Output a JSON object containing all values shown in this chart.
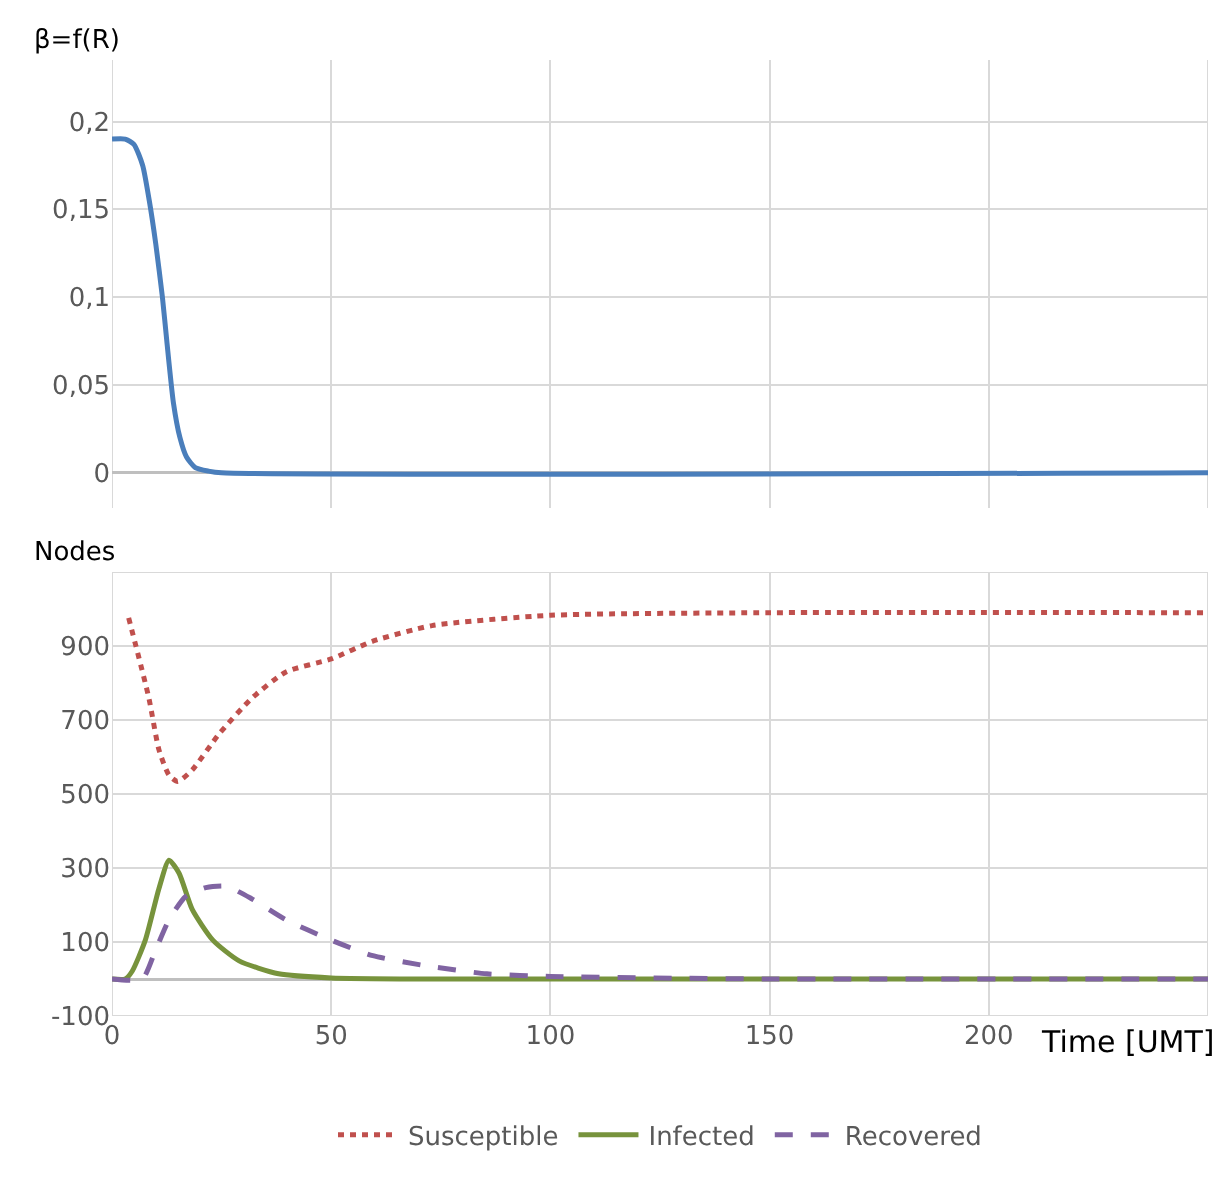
{
  "chart_data": [
    {
      "type": "line",
      "ylabel": "β=f(R)",
      "xlim": [
        0,
        250
      ],
      "xticks": [
        0,
        50,
        100,
        150,
        200,
        {
          "value": 250,
          "label": null
        }
      ],
      "ylim": [
        -0.02,
        0.235
      ],
      "yticks": [
        {
          "value": 0,
          "label": "0"
        },
        {
          "value": 0.05,
          "label": "0,05"
        },
        {
          "value": 0.1,
          "label": "0,1"
        },
        {
          "value": 0.15,
          "label": "0,15"
        },
        {
          "value": 0.2,
          "label": "0,2"
        }
      ],
      "grid": true,
      "tick_labels": "y",
      "line_style": "solid",
      "series": [
        {
          "color": "#4a7ebb",
          "x": [
            0,
            3,
            5,
            7,
            8.5,
            10,
            11.5,
            12.5,
            14,
            15.5,
            17,
            19,
            22,
            25,
            250
          ],
          "values": [
            0.19,
            0.19,
            0.187,
            0.175,
            0.155,
            0.13,
            0.1,
            0.075,
            0.04,
            0.02,
            0.009,
            0.003,
            0.001,
            0,
            0
          ]
        }
      ]
    },
    {
      "type": "line",
      "ylabel": "Nodes",
      "xlabel": "Time [UMT]",
      "xlim": [
        0,
        250
      ],
      "xticks": [
        0,
        50,
        100,
        150,
        200,
        {
          "value": 250,
          "label": null
        }
      ],
      "ylim": [
        -100,
        1100
      ],
      "yticks": [
        -100,
        100,
        300,
        500,
        700,
        900,
        {
          "value": 1100,
          "label": null
        }
      ],
      "grid": true,
      "legend": "bottom",
      "series": [
        {
          "name": "Susceptible",
          "color": "#c0504d",
          "line_style": "dotted",
          "x": [
            3.8,
            8.4,
            10.7,
            13,
            15,
            18.3,
            24.4,
            32,
            39.7,
            50,
            59.5,
            73,
            100,
            150,
            250
          ],
          "values": [
            976,
            760,
            620,
            551,
            534,
            565,
            662,
            760,
            830,
            865,
            913,
            955,
            983,
            990,
            990
          ]
        },
        {
          "name": "Infected",
          "color": "#77933c",
          "line_style": "solid",
          "x": [
            0,
            3,
            4.6,
            7.6,
            10.7,
            13,
            15.3,
            18.3,
            23,
            29,
            38,
            50,
            70,
            250
          ],
          "values": [
            0,
            0,
            21,
            105,
            244,
            321,
            286,
            188,
            105,
            49,
            14,
            3,
            0,
            0
          ]
        },
        {
          "name": "Recovered",
          "color": "#8064a2",
          "line_style": "dashed",
          "x": [
            0,
            6.9,
            9.9,
            13,
            16.8,
            21.4,
            26,
            32,
            39.7,
            50,
            59.5,
            72,
            85.5,
            100,
            130,
            150,
            250
          ],
          "values": [
            0,
            0,
            77,
            160,
            223,
            247,
            251,
            216,
            160,
            105,
            63,
            35,
            14,
            7,
            2,
            0,
            0
          ]
        }
      ]
    }
  ]
}
